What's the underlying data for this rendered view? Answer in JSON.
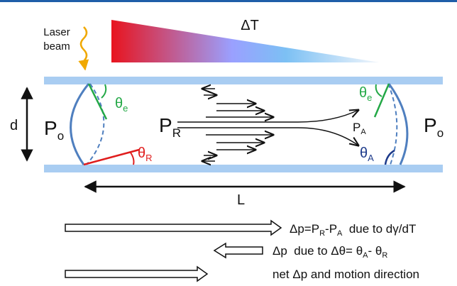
{
  "labels": {
    "laser": [
      "Laser",
      "beam"
    ],
    "delta_t": "ΔT",
    "d": "d",
    "p_left": {
      "t": "P",
      "s": "o"
    },
    "p_right": {
      "t": "P",
      "s": "o"
    },
    "p_r": {
      "t": "P",
      "s": "R"
    },
    "p_a": {
      "t": "P",
      "s": "A"
    },
    "theta_e_left": {
      "t": "θ",
      "s": "e"
    },
    "theta_e_right": {
      "t": "θ",
      "s": "e"
    },
    "theta_r": {
      "t": "θ",
      "s": "R"
    },
    "theta_a": {
      "t": "θ",
      "s": "A"
    },
    "length": "L"
  },
  "legend": [
    [
      {
        "t": "Δp=P"
      },
      {
        "s": "R"
      },
      {
        "t": "-P"
      },
      {
        "s": "A"
      },
      {
        "t": "  due to dγ/dT"
      }
    ],
    [
      {
        "t": "Δp  due to Δθ= θ"
      },
      {
        "s": "A"
      },
      {
        "t": "- θ"
      },
      {
        "s": "R"
      }
    ],
    [
      {
        "t": "net Δp and motion direction"
      }
    ]
  ]
}
